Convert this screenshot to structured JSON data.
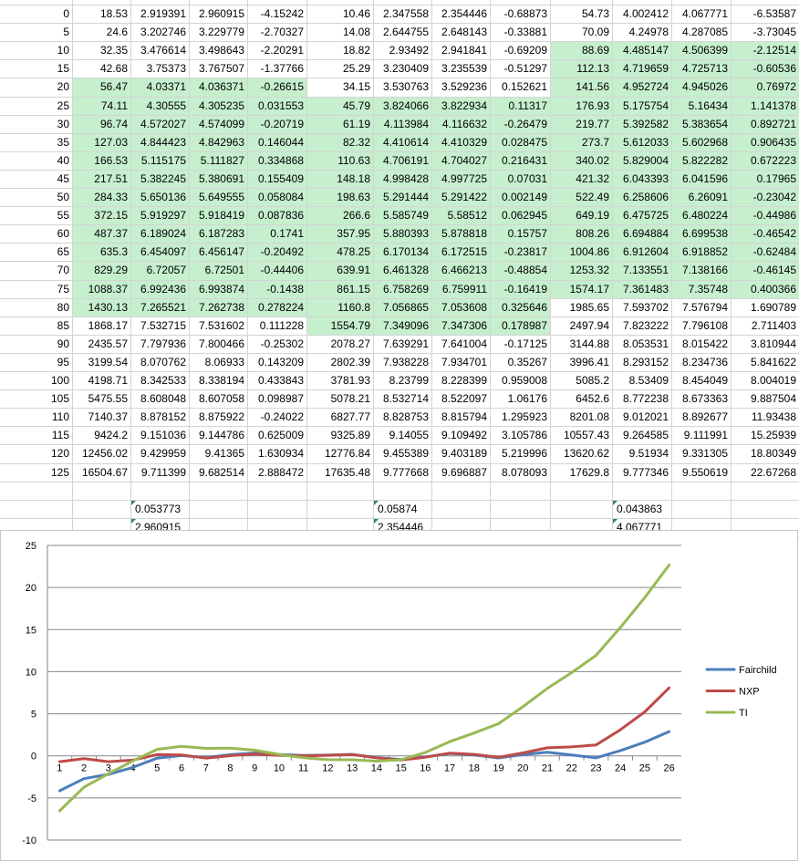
{
  "sheet": {
    "groups": [
      {
        "rows": [
          [
            "0",
            "18.53",
            "2.919391",
            "2.960915",
            "-4.15242"
          ],
          [
            "5",
            "24.6",
            "3.202746",
            "3.229779",
            "-2.70327"
          ],
          [
            "10",
            "32.35",
            "3.476614",
            "3.498643",
            "-2.20291"
          ],
          [
            "15",
            "42.68",
            "3.75373",
            "3.767507",
            "-1.37766"
          ],
          [
            "20",
            "56.47",
            "4.03371",
            "4.036371",
            "-0.26615"
          ],
          [
            "25",
            "74.11",
            "4.30555",
            "4.305235",
            "0.031553"
          ],
          [
            "30",
            "96.74",
            "4.572027",
            "4.574099",
            "-0.20719"
          ],
          [
            "35",
            "127.03",
            "4.844423",
            "4.842963",
            "0.146044"
          ],
          [
            "40",
            "166.53",
            "5.115175",
            "5.111827",
            "0.334868"
          ],
          [
            "45",
            "217.51",
            "5.382245",
            "5.380691",
            "0.155409"
          ],
          [
            "50",
            "284.33",
            "5.650136",
            "5.649555",
            "0.058084"
          ],
          [
            "55",
            "372.15",
            "5.919297",
            "5.918419",
            "0.087836"
          ],
          [
            "60",
            "487.37",
            "6.189024",
            "6.187283",
            "0.1741"
          ],
          [
            "65",
            "635.3",
            "6.454097",
            "6.456147",
            "-0.20492"
          ],
          [
            "70",
            "829.29",
            "6.72057",
            "6.72501",
            "-0.44406"
          ],
          [
            "75",
            "1088.37",
            "6.992436",
            "6.993874",
            "-0.1438"
          ],
          [
            "80",
            "1430.13",
            "7.265521",
            "7.262738",
            "0.278224"
          ],
          [
            "85",
            "1868.17",
            "7.532715",
            "7.531602",
            "0.111228"
          ],
          [
            "90",
            "2435.57",
            "7.797936",
            "7.800466",
            "-0.25302"
          ],
          [
            "95",
            "3199.54",
            "8.070762",
            "8.06933",
            "0.143209"
          ],
          [
            "100",
            "4198.71",
            "8.342533",
            "8.338194",
            "0.433843"
          ],
          [
            "105",
            "5475.55",
            "8.608048",
            "8.607058",
            "0.098987"
          ],
          [
            "110",
            "7140.37",
            "8.878152",
            "8.875922",
            "-0.24022"
          ],
          [
            "115",
            "9424.2",
            "9.151036",
            "9.144786",
            "0.625009"
          ],
          [
            "120",
            "12456.02",
            "9.429959",
            "9.41365",
            "1.630934"
          ],
          [
            "125",
            "16504.67",
            "9.711399",
            "9.682514",
            "2.888472"
          ]
        ],
        "extra": [
          "0.053773",
          "2.960915"
        ]
      },
      {
        "rows": [
          [
            "10.46",
            "2.347558",
            "2.354446",
            "-0.68873"
          ],
          [
            "14.08",
            "2.644755",
            "2.648143",
            "-0.33881"
          ],
          [
            "18.82",
            "2.93492",
            "2.941841",
            "-0.69209"
          ],
          [
            "25.29",
            "3.230409",
            "3.235539",
            "-0.51297"
          ],
          [
            "34.15",
            "3.530763",
            "3.529236",
            "0.152621"
          ],
          [
            "45.79",
            "3.824066",
            "3.822934",
            "0.11317"
          ],
          [
            "61.19",
            "4.113984",
            "4.116632",
            "-0.26479"
          ],
          [
            "82.32",
            "4.410614",
            "4.410329",
            "0.028475"
          ],
          [
            "110.63",
            "4.706191",
            "4.704027",
            "0.216431"
          ],
          [
            "148.18",
            "4.998428",
            "4.997725",
            "0.07031"
          ],
          [
            "198.63",
            "5.291444",
            "5.291422",
            "0.002149"
          ],
          [
            "266.6",
            "5.585749",
            "5.58512",
            "0.062945"
          ],
          [
            "357.95",
            "5.880393",
            "5.878818",
            "0.15757"
          ],
          [
            "478.25",
            "6.170134",
            "6.172515",
            "-0.23817"
          ],
          [
            "639.91",
            "6.461328",
            "6.466213",
            "-0.48854"
          ],
          [
            "861.15",
            "6.758269",
            "6.759911",
            "-0.16419"
          ],
          [
            "1160.8",
            "7.056865",
            "7.053608",
            "0.325646"
          ],
          [
            "1554.79",
            "7.349096",
            "7.347306",
            "0.178987"
          ],
          [
            "2078.27",
            "7.639291",
            "7.641004",
            "-0.17125"
          ],
          [
            "2802.39",
            "7.938228",
            "7.934701",
            "0.35267"
          ],
          [
            "3781.93",
            "8.23799",
            "8.228399",
            "0.959008"
          ],
          [
            "5078.21",
            "8.532714",
            "8.522097",
            "1.06176"
          ],
          [
            "6827.77",
            "8.828753",
            "8.815794",
            "1.295923"
          ],
          [
            "9325.89",
            "9.14055",
            "9.109492",
            "3.105786"
          ],
          [
            "12776.84",
            "9.455389",
            "9.403189",
            "5.219996"
          ],
          [
            "17635.48",
            "9.777668",
            "9.696887",
            "8.078093"
          ]
        ],
        "extra": [
          "0.05874",
          "2.354446"
        ]
      },
      {
        "rows": [
          [
            "54.73",
            "4.002412",
            "4.067771",
            "-6.53587"
          ],
          [
            "70.09",
            "4.24978",
            "4.287085",
            "-3.73045"
          ],
          [
            "88.69",
            "4.485147",
            "4.506399",
            "-2.12514"
          ],
          [
            "112.13",
            "4.719659",
            "4.725713",
            "-0.60536"
          ],
          [
            "141.56",
            "4.952724",
            "4.945026",
            "0.76972"
          ],
          [
            "176.93",
            "5.175754",
            "5.16434",
            "1.141378"
          ],
          [
            "219.77",
            "5.392582",
            "5.383654",
            "0.892721"
          ],
          [
            "273.7",
            "5.612033",
            "5.602968",
            "0.906435"
          ],
          [
            "340.02",
            "5.829004",
            "5.822282",
            "0.672223"
          ],
          [
            "421.32",
            "6.043393",
            "6.041596",
            "0.17965"
          ],
          [
            "522.49",
            "6.258606",
            "6.26091",
            "-0.23042"
          ],
          [
            "649.19",
            "6.475725",
            "6.480224",
            "-0.44986"
          ],
          [
            "808.26",
            "6.694884",
            "6.699538",
            "-0.46542"
          ],
          [
            "1004.86",
            "6.912604",
            "6.918852",
            "-0.62484"
          ],
          [
            "1253.32",
            "7.133551",
            "7.138166",
            "-0.46145"
          ],
          [
            "1574.17",
            "7.361483",
            "7.35748",
            "0.400366"
          ],
          [
            "1985.65",
            "7.593702",
            "7.576794",
            "1.690789"
          ],
          [
            "2497.94",
            "7.823222",
            "7.796108",
            "2.711403"
          ],
          [
            "3144.88",
            "8.053531",
            "8.015422",
            "3.810944"
          ],
          [
            "3996.41",
            "8.293152",
            "8.234736",
            "5.841622"
          ],
          [
            "5085.2",
            "8.53409",
            "8.454049",
            "8.004019"
          ],
          [
            "6452.6",
            "8.772238",
            "8.673363",
            "9.887504"
          ],
          [
            "8201.08",
            "9.012021",
            "8.892677",
            "11.93438"
          ],
          [
            "10557.43",
            "9.264585",
            "9.111991",
            "15.25939"
          ],
          [
            "13620.62",
            "9.51934",
            "9.331305",
            "18.80349"
          ],
          [
            "17629.8",
            "9.777346",
            "9.550619",
            "22.67268"
          ]
        ],
        "extra": [
          "0.043863",
          "4.067771"
        ]
      }
    ],
    "green_ranges": [
      [
        4,
        16
      ],
      [
        5,
        17
      ],
      [
        2,
        15
      ]
    ],
    "green_color": "#c6efce",
    "grid_color": "#d4d4d4"
  },
  "chart_data": {
    "type": "line",
    "x": [
      "1",
      "2",
      "3",
      "4",
      "5",
      "6",
      "7",
      "8",
      "9",
      "10",
      "11",
      "12",
      "13",
      "14",
      "15",
      "16",
      "17",
      "18",
      "19",
      "20",
      "21",
      "22",
      "23",
      "24",
      "25",
      "26"
    ],
    "ylim": [
      -10,
      25
    ],
    "yticks": [
      "-10",
      "-5",
      "0",
      "5",
      "10",
      "15",
      "20",
      "25"
    ],
    "grid": true,
    "legend": "right",
    "series": [
      {
        "name": "Fairchild",
        "color": "#4a7ebb",
        "values": [
          -4.15242,
          -2.70327,
          -2.20291,
          -1.37766,
          -0.26615,
          0.031553,
          -0.20719,
          0.146044,
          0.334868,
          0.155409,
          0.058084,
          0.087836,
          0.1741,
          -0.20492,
          -0.44406,
          -0.1438,
          0.278224,
          0.111228,
          -0.25302,
          0.143209,
          0.433843,
          0.098987,
          -0.24022,
          0.625009,
          1.630934,
          2.888472
        ]
      },
      {
        "name": "NXP",
        "color": "#be4b48",
        "values": [
          -0.68873,
          -0.33881,
          -0.69209,
          -0.51297,
          0.152621,
          0.11317,
          -0.26479,
          0.028475,
          0.216431,
          0.07031,
          0.002149,
          0.062945,
          0.15757,
          -0.23817,
          -0.48854,
          -0.16419,
          0.325646,
          0.178987,
          -0.17125,
          0.35267,
          0.959008,
          1.06176,
          1.295923,
          3.105786,
          5.219996,
          8.078093
        ]
      },
      {
        "name": "TI",
        "color": "#98b954",
        "values": [
          -6.53587,
          -3.73045,
          -2.12514,
          -0.60536,
          0.76972,
          1.141378,
          0.892721,
          0.906435,
          0.672223,
          0.17965,
          -0.23042,
          -0.44986,
          -0.46542,
          -0.62484,
          -0.46145,
          0.400366,
          1.690789,
          2.711403,
          3.810944,
          5.841622,
          8.004019,
          9.887504,
          11.93438,
          15.25939,
          18.80349,
          22.67268
        ]
      }
    ]
  }
}
